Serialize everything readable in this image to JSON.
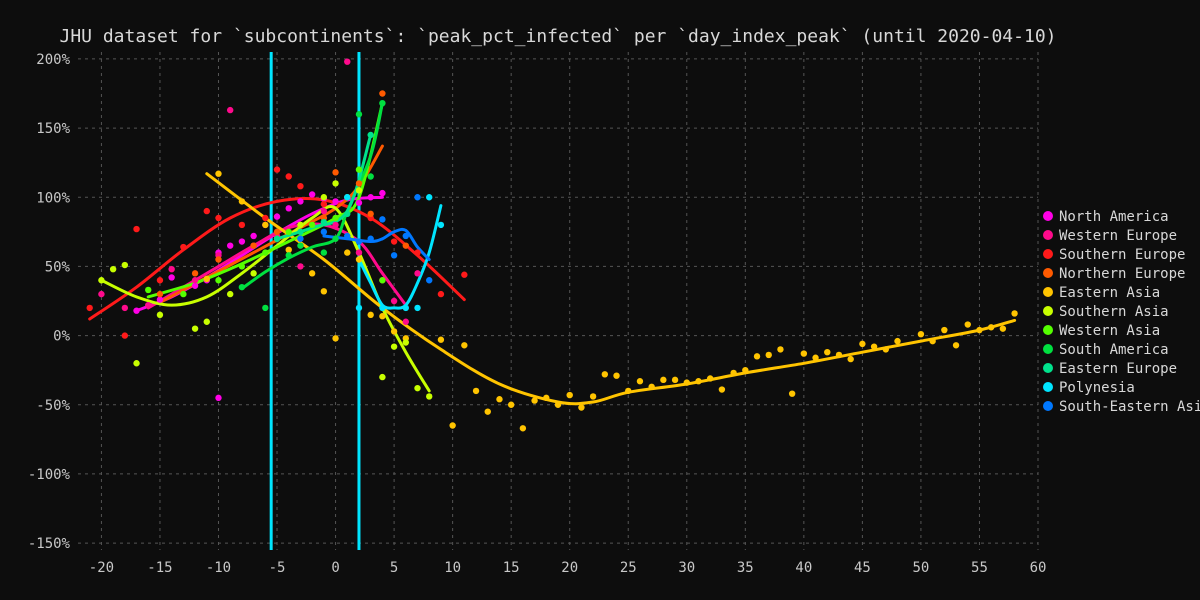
{
  "chart_data": {
    "type": "scatter",
    "title": "JHU dataset for `subcontinents`: `peak_pct_infected` per `day_index_peak` (until 2020-04-10)",
    "xlabel": "",
    "ylabel": "",
    "xlim": [
      -22,
      60
    ],
    "ylim": [
      -155,
      205
    ],
    "xticks": [
      -20,
      -15,
      -10,
      -5,
      0,
      5,
      10,
      15,
      20,
      25,
      30,
      35,
      40,
      45,
      50,
      55,
      60
    ],
    "yticks": [
      200,
      150,
      100,
      50,
      0,
      -50,
      -100,
      -150
    ],
    "ytick_labels": [
      "200%",
      "150%",
      "100%",
      "50%",
      "0%",
      "-50%",
      "-100%",
      "-150%"
    ],
    "grid": true,
    "legend_position": "right",
    "vlines": [
      {
        "x": -5.5,
        "color": "#00e5ff"
      },
      {
        "x": 2,
        "color": "#00e5ff"
      }
    ],
    "series": [
      {
        "name": "North America",
        "color": "#ff00e6",
        "points": [
          [
            -17,
            18
          ],
          [
            -15,
            26
          ],
          [
            -14,
            42
          ],
          [
            -12,
            36
          ],
          [
            -11,
            40
          ],
          [
            -10,
            60
          ],
          [
            -9,
            65
          ],
          [
            -8,
            68
          ],
          [
            -7,
            72
          ],
          [
            -6,
            80
          ],
          [
            -5,
            86
          ],
          [
            -4,
            92
          ],
          [
            -3,
            97
          ],
          [
            -2,
            102
          ],
          [
            -1,
            99
          ],
          [
            0,
            97
          ],
          [
            1,
            100
          ],
          [
            2,
            96
          ],
          [
            3,
            100
          ],
          [
            4,
            103
          ],
          [
            -10,
            -45
          ]
        ],
        "trend": [
          [
            -17,
            18
          ],
          [
            -14,
            28
          ],
          [
            -11,
            42
          ],
          [
            -8,
            58
          ],
          [
            -5,
            74
          ],
          [
            -2,
            88
          ],
          [
            1,
            98
          ],
          [
            4,
            100
          ]
        ]
      },
      {
        "name": "Western Europe",
        "color": "#ff0a8c",
        "points": [
          [
            -20,
            30
          ],
          [
            -18,
            20
          ],
          [
            -16,
            22
          ],
          [
            -14,
            48
          ],
          [
            -12,
            40
          ],
          [
            -10,
            58
          ],
          [
            -9,
            163
          ],
          [
            -7,
            65
          ],
          [
            -5,
            72
          ],
          [
            -3,
            50
          ],
          [
            -1,
            90
          ],
          [
            0,
            80
          ],
          [
            1,
            198
          ],
          [
            2,
            60
          ],
          [
            4,
            40
          ],
          [
            5,
            25
          ],
          [
            6,
            10
          ],
          [
            7,
            45
          ]
        ],
        "trend": [
          [
            -16,
            20
          ],
          [
            -13,
            35
          ],
          [
            -10,
            50
          ],
          [
            -7,
            65
          ],
          [
            -4,
            78
          ],
          [
            -1,
            80
          ],
          [
            2,
            68
          ],
          [
            4,
            45
          ],
          [
            6,
            22
          ]
        ]
      },
      {
        "name": "Southern Europe",
        "color": "#ff1a1a",
        "points": [
          [
            -21,
            20
          ],
          [
            -18,
            0
          ],
          [
            -17,
            77
          ],
          [
            -15,
            40
          ],
          [
            -13,
            64
          ],
          [
            -11,
            90
          ],
          [
            -10,
            85
          ],
          [
            -8,
            80
          ],
          [
            -6,
            85
          ],
          [
            -5,
            120
          ],
          [
            -4,
            115
          ],
          [
            -3,
            108
          ],
          [
            -1,
            95
          ],
          [
            1,
            100
          ],
          [
            3,
            85
          ],
          [
            5,
            68
          ],
          [
            7,
            60
          ],
          [
            9,
            30
          ],
          [
            11,
            44
          ]
        ],
        "trend": [
          [
            -21,
            12
          ],
          [
            -17,
            35
          ],
          [
            -13,
            62
          ],
          [
            -9,
            85
          ],
          [
            -5,
            97
          ],
          [
            -1,
            98
          ],
          [
            3,
            85
          ],
          [
            7,
            58
          ],
          [
            11,
            26
          ]
        ]
      },
      {
        "name": "Northern Europe",
        "color": "#ff5a00",
        "points": [
          [
            -15,
            30
          ],
          [
            -12,
            45
          ],
          [
            -10,
            55
          ],
          [
            -7,
            65
          ],
          [
            -5,
            75
          ],
          [
            -3,
            80
          ],
          [
            -1,
            85
          ],
          [
            0,
            118
          ],
          [
            2,
            110
          ],
          [
            3,
            88
          ],
          [
            4,
            175
          ],
          [
            6,
            65
          ]
        ],
        "trend": [
          [
            -15,
            24
          ],
          [
            -11,
            42
          ],
          [
            -7,
            60
          ],
          [
            -3,
            78
          ],
          [
            0,
            92
          ],
          [
            2,
            108
          ],
          [
            4,
            137
          ]
        ]
      },
      {
        "name": "Eastern Asia",
        "color": "#ffc400",
        "points": [
          [
            -11,
            41
          ],
          [
            -10,
            117
          ],
          [
            -8,
            97
          ],
          [
            -6,
            80
          ],
          [
            -4,
            62
          ],
          [
            -2,
            45
          ],
          [
            -1,
            32
          ],
          [
            0,
            -2
          ],
          [
            1,
            60
          ],
          [
            2,
            55
          ],
          [
            3,
            15
          ],
          [
            4,
            14
          ],
          [
            5,
            3
          ],
          [
            6,
            -2
          ],
          [
            9,
            -3
          ],
          [
            10,
            -65
          ],
          [
            11,
            -7
          ],
          [
            12,
            -40
          ],
          [
            13,
            -55
          ],
          [
            14,
            -46
          ],
          [
            15,
            -50
          ],
          [
            16,
            -67
          ],
          [
            17,
            -47
          ],
          [
            18,
            -45
          ],
          [
            19,
            -50
          ],
          [
            20,
            -43
          ],
          [
            21,
            -52
          ],
          [
            22,
            -44
          ],
          [
            23,
            -28
          ],
          [
            24,
            -29
          ],
          [
            25,
            -40
          ],
          [
            26,
            -33
          ],
          [
            27,
            -37
          ],
          [
            28,
            -32
          ],
          [
            29,
            -32
          ],
          [
            30,
            -34
          ],
          [
            31,
            -33
          ],
          [
            32,
            -31
          ],
          [
            33,
            -39
          ],
          [
            34,
            -27
          ],
          [
            35,
            -25
          ],
          [
            36,
            -15
          ],
          [
            37,
            -14
          ],
          [
            38,
            -10
          ],
          [
            39,
            -42
          ],
          [
            40,
            -13
          ],
          [
            41,
            -16
          ],
          [
            42,
            -12
          ],
          [
            43,
            -14
          ],
          [
            44,
            -17
          ],
          [
            45,
            -6
          ],
          [
            46,
            -8
          ],
          [
            47,
            -10
          ],
          [
            48,
            -4
          ],
          [
            50,
            1
          ],
          [
            51,
            -4
          ],
          [
            52,
            4
          ],
          [
            53,
            -7
          ],
          [
            54,
            8
          ],
          [
            55,
            4
          ],
          [
            56,
            6
          ],
          [
            57,
            5
          ],
          [
            58,
            16
          ]
        ],
        "trend": [
          [
            -11,
            117
          ],
          [
            -6,
            85
          ],
          [
            -1,
            55
          ],
          [
            4,
            20
          ],
          [
            9,
            -10
          ],
          [
            14,
            -35
          ],
          [
            19,
            -48
          ],
          [
            22,
            -48
          ],
          [
            25,
            -41
          ],
          [
            30,
            -35
          ],
          [
            35,
            -27
          ],
          [
            40,
            -20
          ],
          [
            45,
            -12
          ],
          [
            50,
            -4
          ],
          [
            55,
            4
          ],
          [
            58,
            11
          ]
        ]
      },
      {
        "name": "Southern Asia",
        "color": "#c8ff00",
        "points": [
          [
            -20,
            40
          ],
          [
            -19,
            48
          ],
          [
            -18,
            51
          ],
          [
            -17,
            -20
          ],
          [
            -15,
            15
          ],
          [
            -12,
            5
          ],
          [
            -11,
            10
          ],
          [
            -9,
            30
          ],
          [
            -7,
            45
          ],
          [
            -5,
            70
          ],
          [
            -3,
            80
          ],
          [
            -1,
            100
          ],
          [
            0,
            110
          ],
          [
            2,
            105
          ],
          [
            4,
            -30
          ],
          [
            5,
            -8
          ],
          [
            6,
            -5
          ],
          [
            7,
            -38
          ],
          [
            8,
            -44
          ]
        ],
        "trend": [
          [
            -20,
            40
          ],
          [
            -17,
            28
          ],
          [
            -14,
            22
          ],
          [
            -11,
            28
          ],
          [
            -8,
            45
          ],
          [
            -5,
            65
          ],
          [
            -2,
            85
          ],
          [
            0,
            92
          ],
          [
            2,
            60
          ],
          [
            4,
            20
          ],
          [
            6,
            -12
          ],
          [
            8,
            -40
          ]
        ]
      },
      {
        "name": "Western Asia",
        "color": "#55ff00",
        "points": [
          [
            -16,
            33
          ],
          [
            -13,
            30
          ],
          [
            -10,
            40
          ],
          [
            -8,
            50
          ],
          [
            -6,
            60
          ],
          [
            -4,
            75
          ],
          [
            -2,
            80
          ],
          [
            0,
            85
          ],
          [
            2,
            120
          ],
          [
            4,
            40
          ]
        ],
        "trend": [
          [
            -16,
            28
          ],
          [
            -12,
            38
          ],
          [
            -8,
            52
          ],
          [
            -4,
            68
          ],
          [
            0,
            85
          ],
          [
            2,
            100
          ],
          [
            4,
            168
          ]
        ]
      },
      {
        "name": "South America",
        "color": "#00e040",
        "points": [
          [
            -8,
            35
          ],
          [
            -6,
            20
          ],
          [
            -4,
            58
          ],
          [
            -3,
            65
          ],
          [
            -1,
            60
          ],
          [
            0,
            70
          ],
          [
            1,
            100
          ],
          [
            2,
            160
          ],
          [
            3,
            115
          ],
          [
            4,
            168
          ]
        ],
        "trend": [
          [
            -8,
            34
          ],
          [
            -6,
            46
          ],
          [
            -4,
            56
          ],
          [
            -2,
            64
          ],
          [
            0,
            70
          ],
          [
            1,
            90
          ],
          [
            3,
            130
          ],
          [
            4,
            168
          ]
        ]
      },
      {
        "name": "Eastern Europe",
        "color": "#00e28c",
        "points": [
          [
            -5,
            70
          ],
          [
            -3,
            75
          ],
          [
            -1,
            82
          ],
          [
            1,
            88
          ],
          [
            3,
            145
          ]
        ],
        "trend": [
          [
            -5,
            70
          ],
          [
            -2,
            78
          ],
          [
            1,
            90
          ],
          [
            3,
            145
          ]
        ]
      },
      {
        "name": "Polynesia",
        "color": "#00e5ff",
        "points": [
          [
            2,
            20
          ],
          [
            4,
            20
          ],
          [
            6,
            20
          ],
          [
            7,
            20
          ],
          [
            9,
            80
          ],
          [
            8,
            100
          ],
          [
            1,
            100
          ]
        ],
        "trend": [
          [
            2,
            55
          ],
          [
            3,
            38
          ],
          [
            4,
            22
          ],
          [
            5,
            20
          ],
          [
            6,
            22
          ],
          [
            7,
            38
          ],
          [
            8,
            60
          ],
          [
            9,
            94
          ]
        ]
      },
      {
        "name": "South-Eastern Asia",
        "color": "#0078ff",
        "points": [
          [
            -1,
            75
          ],
          [
            1,
            72
          ],
          [
            2,
            68
          ],
          [
            3,
            70
          ],
          [
            4,
            84
          ],
          [
            5,
            58
          ],
          [
            6,
            72
          ],
          [
            7,
            100
          ],
          [
            8,
            40
          ],
          [
            -3,
            70
          ]
        ],
        "trend": [
          [
            -1,
            72
          ],
          [
            1,
            70
          ],
          [
            3,
            68
          ],
          [
            4,
            70
          ],
          [
            5,
            75
          ],
          [
            6,
            76
          ],
          [
            7,
            64
          ],
          [
            8,
            55
          ]
        ]
      }
    ]
  }
}
